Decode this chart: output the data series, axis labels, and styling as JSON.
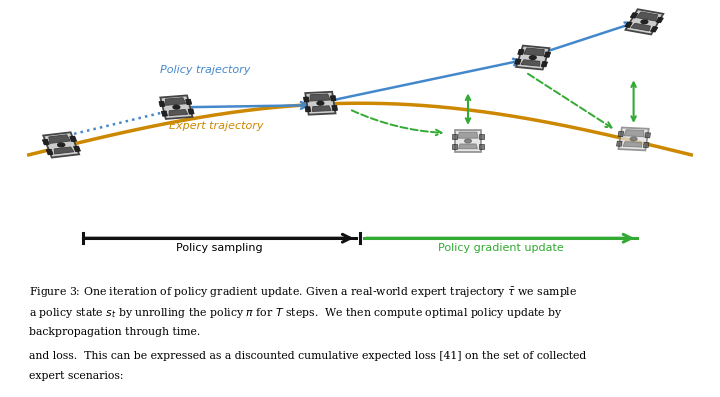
{
  "bg_color": "#ffffff",
  "policy_traj_color": "#4488cc",
  "expert_traj_color": "#cc8800",
  "green_color": "#33aa33",
  "arrow_black": "#111111",
  "text_color": "#000000",
  "policy_label": "Policy trajectory",
  "expert_label": "Expert trajectory",
  "policy_sampling_label": "Policy sampling",
  "policy_gradient_label": "Policy gradient update"
}
